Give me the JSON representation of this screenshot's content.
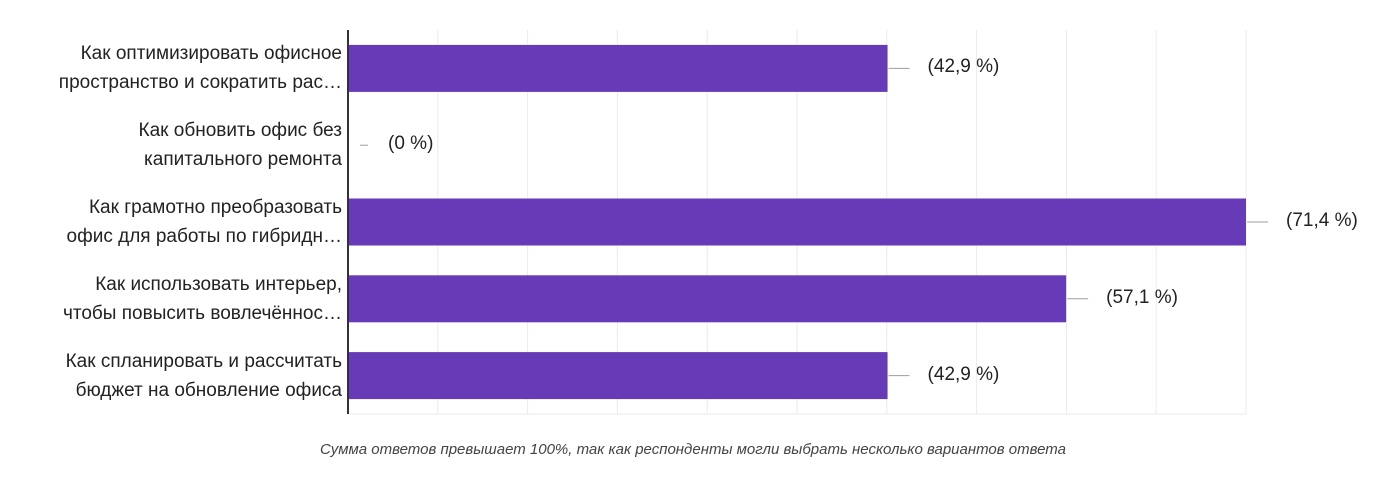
{
  "chart_data": {
    "type": "bar",
    "orientation": "horizontal",
    "categories": [
      [
        "Как оптимизировать офисное",
        "пространство и сократить рас…"
      ],
      [
        "Как обновить офис без",
        "капитального ремонта"
      ],
      [
        "Как грамотно преобразовать",
        "офис для работы по гибридн…"
      ],
      [
        "Как использовать интерьер,",
        "чтобы повысить вовлечённос…"
      ],
      [
        "Как спланировать и рассчитать",
        "бюджет на обновление офиса"
      ]
    ],
    "values": [
      42.9,
      0,
      71.4,
      57.1,
      42.9
    ],
    "data_labels": [
      "(42,9 %)",
      "(0 %)",
      "(71,4 %)",
      "(57,1 %)",
      "(42,9 %)"
    ],
    "xlim": [
      0,
      71.4
    ],
    "grid": true,
    "bar_color": "#673ab7",
    "footnote": "Сумма ответов превышает 100%, так как респонденты могли выбрать несколько вариантов ответа"
  }
}
